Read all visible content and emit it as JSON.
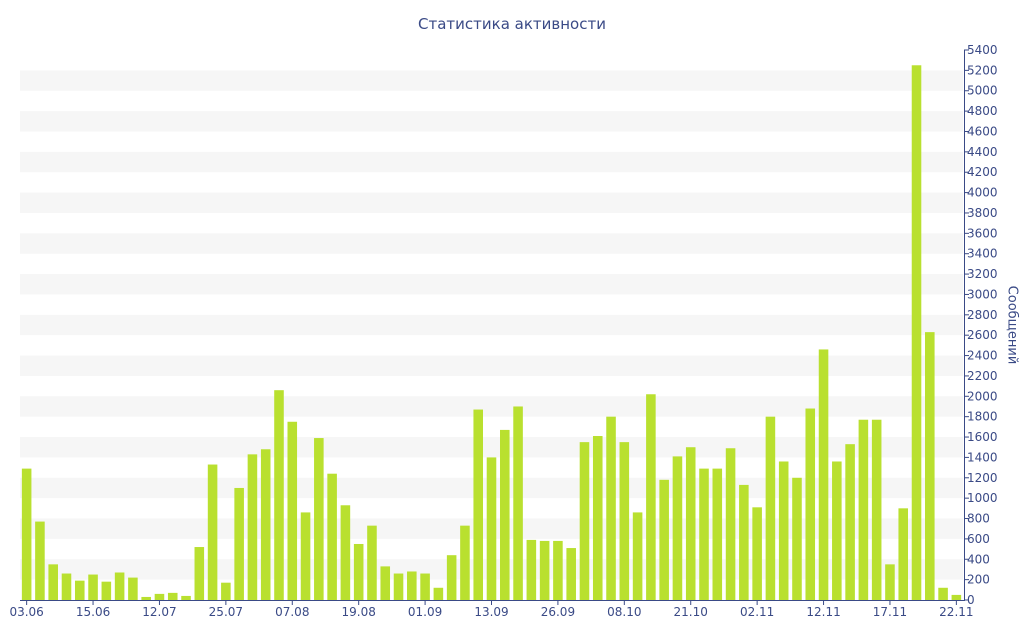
{
  "chart_data": {
    "type": "bar",
    "title": "Статистика активности",
    "xlabel": "",
    "ylabel": "Сообщений",
    "ylim": [
      0,
      5400
    ],
    "y_ticks": [
      0,
      200,
      400,
      600,
      800,
      1000,
      1200,
      1400,
      1600,
      1800,
      2000,
      2200,
      2400,
      2600,
      2800,
      3000,
      3200,
      3400,
      3600,
      3800,
      4000,
      4200,
      4400,
      4600,
      4800,
      5000,
      5200,
      5400
    ],
    "x_tick_labels": [
      {
        "label": "03.06",
        "index": 0
      },
      {
        "label": "15.06",
        "index": 5
      },
      {
        "label": "12.07",
        "index": 10
      },
      {
        "label": "25.07",
        "index": 15
      },
      {
        "label": "07.08",
        "index": 20
      },
      {
        "label": "19.08",
        "index": 25
      },
      {
        "label": "01.09",
        "index": 30
      },
      {
        "label": "13.09",
        "index": 35
      },
      {
        "label": "26.09",
        "index": 40
      },
      {
        "label": "08.10",
        "index": 45
      },
      {
        "label": "21.10",
        "index": 50
      },
      {
        "label": "02.11",
        "index": 55
      },
      {
        "label": "12.11",
        "index": 60
      },
      {
        "label": "17.11",
        "index": 65
      },
      {
        "label": "22.11",
        "index": 70
      }
    ],
    "values": [
      1290,
      770,
      350,
      260,
      190,
      250,
      180,
      270,
      220,
      30,
      60,
      70,
      40,
      520,
      1330,
      170,
      1100,
      1430,
      1480,
      2060,
      1750,
      860,
      1590,
      1240,
      930,
      550,
      730,
      330,
      260,
      280,
      260,
      120,
      440,
      730,
      1870,
      1400,
      1670,
      1900,
      590,
      580,
      580,
      510,
      1550,
      1610,
      1800,
      1550,
      860,
      2020,
      1180,
      1410,
      1500,
      1290,
      1290,
      1490,
      1130,
      910,
      1800,
      1360,
      1200,
      1880,
      2460,
      1360,
      1530,
      1770,
      1770,
      350,
      900,
      5250,
      2630,
      120,
      50
    ],
    "bar_color": "#b9e02f",
    "band_color": "#f6f6f6",
    "axis_color": "#3a4a86",
    "grid": true
  }
}
